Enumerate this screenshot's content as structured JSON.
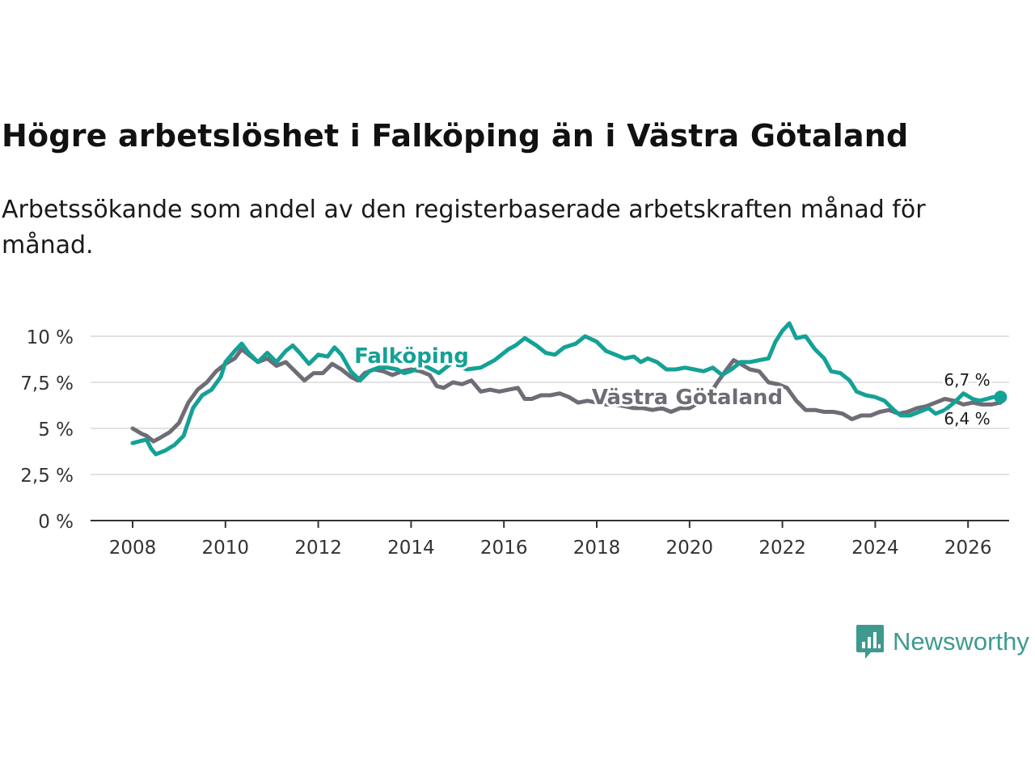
{
  "header": {
    "title": "Högre arbetslöshet i Falköping än i Västra Götaland",
    "subtitle": "Arbetssökande som andel av den registerbaserade arbetskraften månad för månad."
  },
  "brand": {
    "name": "Newsworthy",
    "icon": "newsworthy-logo-icon",
    "color": "#3e9a8f"
  },
  "chart_data": {
    "type": "line",
    "title": "Högre arbetslöshet i Falköping än i Västra Götaland",
    "xlabel": "",
    "ylabel": "",
    "xlim": [
      2007.0,
      2027.0
    ],
    "ylim": [
      0,
      10
    ],
    "x_ticks": [
      2008,
      2010,
      2012,
      2014,
      2016,
      2018,
      2020,
      2022,
      2024,
      2026
    ],
    "x_tick_labels": [
      "2008",
      "2010",
      "2012",
      "2014",
      "2016",
      "2018",
      "2020",
      "2022",
      "2024",
      "2026"
    ],
    "y_ticks": [
      0,
      2.5,
      5,
      7.5,
      10
    ],
    "y_tick_labels": [
      "0 %",
      "2,5 %",
      "5 %",
      "7,5 %",
      "10 %"
    ],
    "grid": "horizontal",
    "series": [
      {
        "name": "Falköping",
        "label": "Falköping",
        "color": "#14a196",
        "end_label": "6,7 %",
        "points": [
          [
            2008.0,
            4.2
          ],
          [
            2008.3,
            4.4
          ],
          [
            2008.4,
            3.9
          ],
          [
            2008.5,
            3.6
          ],
          [
            2008.7,
            3.8
          ],
          [
            2008.9,
            4.1
          ],
          [
            2009.1,
            4.6
          ],
          [
            2009.3,
            6.1
          ],
          [
            2009.5,
            6.8
          ],
          [
            2009.7,
            7.1
          ],
          [
            2009.9,
            7.8
          ],
          [
            2010.0,
            8.6
          ],
          [
            2010.2,
            9.2
          ],
          [
            2010.35,
            9.6
          ],
          [
            2010.5,
            9.1
          ],
          [
            2010.7,
            8.6
          ],
          [
            2010.9,
            9.1
          ],
          [
            2011.1,
            8.6
          ],
          [
            2011.3,
            9.2
          ],
          [
            2011.45,
            9.5
          ],
          [
            2011.6,
            9.1
          ],
          [
            2011.8,
            8.5
          ],
          [
            2012.0,
            9.0
          ],
          [
            2012.2,
            8.9
          ],
          [
            2012.35,
            9.4
          ],
          [
            2012.5,
            9.0
          ],
          [
            2012.7,
            8.1
          ],
          [
            2012.9,
            7.6
          ],
          [
            2013.1,
            8.1
          ],
          [
            2013.3,
            8.3
          ],
          [
            2013.5,
            8.3
          ],
          [
            2013.7,
            8.2
          ],
          [
            2013.85,
            8.0
          ],
          [
            2014.0,
            8.1
          ],
          [
            2014.3,
            8.4
          ],
          [
            2014.6,
            8.0
          ],
          [
            2014.9,
            8.6
          ],
          [
            2015.2,
            8.2
          ],
          [
            2015.5,
            8.3
          ],
          [
            2015.8,
            8.7
          ],
          [
            2016.1,
            9.3
          ],
          [
            2016.25,
            9.5
          ],
          [
            2016.45,
            9.9
          ],
          [
            2016.7,
            9.5
          ],
          [
            2016.9,
            9.1
          ],
          [
            2017.1,
            9.0
          ],
          [
            2017.3,
            9.4
          ],
          [
            2017.55,
            9.6
          ],
          [
            2017.75,
            10.0
          ],
          [
            2018.0,
            9.7
          ],
          [
            2018.2,
            9.2
          ],
          [
            2018.4,
            9.0
          ],
          [
            2018.6,
            8.8
          ],
          [
            2018.8,
            8.9
          ],
          [
            2018.95,
            8.6
          ],
          [
            2019.1,
            8.8
          ],
          [
            2019.3,
            8.6
          ],
          [
            2019.5,
            8.2
          ],
          [
            2019.7,
            8.2
          ],
          [
            2019.9,
            8.3
          ],
          [
            2020.1,
            8.2
          ],
          [
            2020.3,
            8.1
          ],
          [
            2020.5,
            8.3
          ],
          [
            2020.7,
            7.9
          ],
          [
            2020.9,
            8.2
          ],
          [
            2021.1,
            8.6
          ],
          [
            2021.3,
            8.6
          ],
          [
            2021.5,
            8.7
          ],
          [
            2021.7,
            8.8
          ],
          [
            2021.85,
            9.7
          ],
          [
            2022.0,
            10.3
          ],
          [
            2022.15,
            10.7
          ],
          [
            2022.3,
            9.9
          ],
          [
            2022.5,
            10.0
          ],
          [
            2022.7,
            9.3
          ],
          [
            2022.9,
            8.8
          ],
          [
            2023.05,
            8.1
          ],
          [
            2023.25,
            8.0
          ],
          [
            2023.45,
            7.6
          ],
          [
            2023.6,
            7.0
          ],
          [
            2023.8,
            6.8
          ],
          [
            2024.0,
            6.7
          ],
          [
            2024.2,
            6.5
          ],
          [
            2024.4,
            6.0
          ],
          [
            2024.55,
            5.7
          ],
          [
            2024.75,
            5.7
          ],
          [
            2024.95,
            5.9
          ],
          [
            2025.15,
            6.1
          ],
          [
            2025.3,
            5.8
          ],
          [
            2025.5,
            6.0
          ],
          [
            2025.7,
            6.4
          ],
          [
            2025.9,
            6.9
          ],
          [
            2026.1,
            6.6
          ],
          [
            2026.25,
            6.5
          ],
          [
            2026.4,
            6.6
          ],
          [
            2026.55,
            6.7
          ],
          [
            2026.7,
            6.7
          ]
        ]
      },
      {
        "name": "Västra Götaland",
        "label": "Västra Götaland",
        "color": "#6f6c76",
        "end_label": "6,4 %",
        "points": [
          [
            2008.0,
            5.0
          ],
          [
            2008.2,
            4.7
          ],
          [
            2008.3,
            4.6
          ],
          [
            2008.45,
            4.3
          ],
          [
            2008.6,
            4.5
          ],
          [
            2008.8,
            4.8
          ],
          [
            2009.0,
            5.3
          ],
          [
            2009.2,
            6.4
          ],
          [
            2009.4,
            7.1
          ],
          [
            2009.6,
            7.5
          ],
          [
            2009.8,
            8.1
          ],
          [
            2010.0,
            8.5
          ],
          [
            2010.2,
            8.8
          ],
          [
            2010.35,
            9.3
          ],
          [
            2010.5,
            9.0
          ],
          [
            2010.7,
            8.6
          ],
          [
            2010.9,
            8.8
          ],
          [
            2011.1,
            8.4
          ],
          [
            2011.3,
            8.6
          ],
          [
            2011.5,
            8.1
          ],
          [
            2011.7,
            7.6
          ],
          [
            2011.9,
            8.0
          ],
          [
            2012.1,
            8.0
          ],
          [
            2012.3,
            8.5
          ],
          [
            2012.5,
            8.2
          ],
          [
            2012.7,
            7.8
          ],
          [
            2012.85,
            7.6
          ],
          [
            2013.0,
            8.0
          ],
          [
            2013.2,
            8.2
          ],
          [
            2013.4,
            8.1
          ],
          [
            2013.6,
            7.9
          ],
          [
            2013.8,
            8.1
          ],
          [
            2014.0,
            8.2
          ],
          [
            2014.2,
            8.1
          ],
          [
            2014.4,
            7.9
          ],
          [
            2014.55,
            7.3
          ],
          [
            2014.7,
            7.2
          ],
          [
            2014.9,
            7.5
          ],
          [
            2015.1,
            7.4
          ],
          [
            2015.3,
            7.6
          ],
          [
            2015.5,
            7.0
          ],
          [
            2015.7,
            7.1
          ],
          [
            2015.9,
            7.0
          ],
          [
            2016.1,
            7.1
          ],
          [
            2016.3,
            7.2
          ],
          [
            2016.45,
            6.6
          ],
          [
            2016.6,
            6.6
          ],
          [
            2016.8,
            6.8
          ],
          [
            2017.0,
            6.8
          ],
          [
            2017.2,
            6.9
          ],
          [
            2017.4,
            6.7
          ],
          [
            2017.6,
            6.4
          ],
          [
            2017.8,
            6.5
          ],
          [
            2018.0,
            6.4
          ],
          [
            2018.2,
            6.3
          ],
          [
            2018.4,
            6.3
          ],
          [
            2018.6,
            6.2
          ],
          [
            2018.8,
            6.1
          ],
          [
            2019.0,
            6.1
          ],
          [
            2019.2,
            6.0
          ],
          [
            2019.4,
            6.1
          ],
          [
            2019.6,
            5.9
          ],
          [
            2019.8,
            6.1
          ],
          [
            2020.0,
            6.1
          ],
          [
            2020.2,
            6.4
          ],
          [
            2020.4,
            6.7
          ],
          [
            2020.6,
            7.5
          ],
          [
            2020.8,
            8.2
          ],
          [
            2020.95,
            8.7
          ],
          [
            2021.1,
            8.5
          ],
          [
            2021.3,
            8.2
          ],
          [
            2021.5,
            8.1
          ],
          [
            2021.7,
            7.5
          ],
          [
            2021.9,
            7.4
          ],
          [
            2022.1,
            7.2
          ],
          [
            2022.3,
            6.5
          ],
          [
            2022.5,
            6.0
          ],
          [
            2022.7,
            6.0
          ],
          [
            2022.9,
            5.9
          ],
          [
            2023.1,
            5.9
          ],
          [
            2023.3,
            5.8
          ],
          [
            2023.5,
            5.5
          ],
          [
            2023.7,
            5.7
          ],
          [
            2023.9,
            5.7
          ],
          [
            2024.1,
            5.9
          ],
          [
            2024.3,
            6.0
          ],
          [
            2024.5,
            5.8
          ],
          [
            2024.7,
            5.9
          ],
          [
            2024.9,
            6.1
          ],
          [
            2025.1,
            6.2
          ],
          [
            2025.3,
            6.4
          ],
          [
            2025.5,
            6.6
          ],
          [
            2025.7,
            6.5
          ],
          [
            2025.9,
            6.3
          ],
          [
            2026.1,
            6.4
          ],
          [
            2026.3,
            6.3
          ],
          [
            2026.5,
            6.3
          ],
          [
            2026.7,
            6.4
          ]
        ]
      }
    ]
  }
}
